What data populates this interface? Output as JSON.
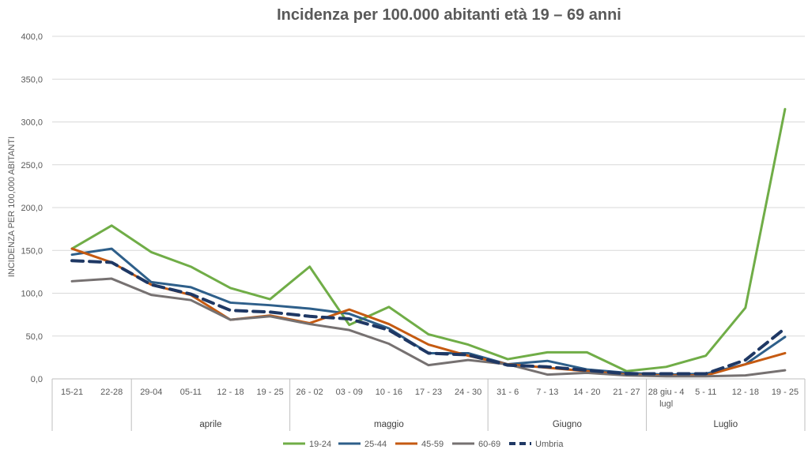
{
  "chart_data": {
    "type": "line",
    "title": "Incidenza per 100.000 abitanti età 19 – 69 anni",
    "ylabel": "INCIDENZA PER 100,000 ABITANTI",
    "xlabel": "",
    "ylim": [
      0,
      400
    ],
    "yticks": [
      "0,0",
      "50,0",
      "100,0",
      "150,0",
      "200,0",
      "250,0",
      "300,0",
      "350,0",
      "400,0"
    ],
    "grid": true,
    "legend_position": "bottom",
    "categories": [
      "15-21",
      "22-28",
      "29-04",
      "05-11",
      "12 - 18",
      "19 - 25",
      "26 - 02",
      "03 - 09",
      "10 - 16",
      "17 - 23",
      "24 - 30",
      "31 - 6",
      "7 - 13",
      "14 - 20",
      "21 - 27",
      "28 giu - 4 lugl",
      "5 - 11",
      "12 - 18",
      "19 - 25"
    ],
    "category_lines": [
      [
        "15-21"
      ],
      [
        "22-28"
      ],
      [
        "29-04"
      ],
      [
        "05-11"
      ],
      [
        "12 - 18"
      ],
      [
        "19 - 25"
      ],
      [
        "26 - 02"
      ],
      [
        "03 - 09"
      ],
      [
        "10 - 16"
      ],
      [
        "17 - 23"
      ],
      [
        "24 - 30"
      ],
      [
        "31 - 6"
      ],
      [
        "7 - 13"
      ],
      [
        "14 - 20"
      ],
      [
        "21 - 27"
      ],
      [
        "28 giu - 4",
        "lugl"
      ],
      [
        "5 - 11"
      ],
      [
        "12 - 18"
      ],
      [
        "19 - 25"
      ]
    ],
    "groups": [
      {
        "label": "",
        "start": 0,
        "end": 1
      },
      {
        "label": "aprile",
        "start": 2,
        "end": 5
      },
      {
        "label": "maggio",
        "start": 6,
        "end": 10
      },
      {
        "label": "Giugno",
        "start": 11,
        "end": 14
      },
      {
        "label": "Luglio",
        "start": 15,
        "end": 18
      }
    ],
    "series": [
      {
        "name": "19-24",
        "color": "#70AD47",
        "dashed": false,
        "values": [
          152,
          179,
          148,
          131,
          106,
          93,
          131,
          63,
          84,
          52,
          40,
          23,
          31,
          31,
          9,
          14,
          27,
          83,
          315
        ]
      },
      {
        "name": "25-44",
        "color": "#2E5F8A",
        "dashed": false,
        "values": [
          145,
          152,
          113,
          107,
          89,
          86,
          82,
          76,
          59,
          30,
          30,
          17,
          21,
          11,
          7,
          5,
          6,
          17,
          49
        ]
      },
      {
        "name": "45-59",
        "color": "#C55A11",
        "dashed": false,
        "values": [
          152,
          136,
          110,
          98,
          69,
          74,
          65,
          81,
          64,
          40,
          27,
          17,
          13,
          9,
          5,
          4,
          4,
          17,
          30
        ]
      },
      {
        "name": "60-69",
        "color": "#767171",
        "dashed": false,
        "values": [
          114,
          117,
          98,
          92,
          69,
          73,
          64,
          57,
          41,
          16,
          22,
          17,
          5,
          7,
          4,
          3,
          3,
          4,
          10
        ]
      },
      {
        "name": "Umbria",
        "color": "#1F3864",
        "dashed": true,
        "values": [
          138,
          136,
          110,
          99,
          80,
          78,
          73,
          70,
          57,
          30,
          28,
          16,
          14,
          10,
          6,
          6,
          6,
          22,
          59
        ]
      }
    ]
  }
}
